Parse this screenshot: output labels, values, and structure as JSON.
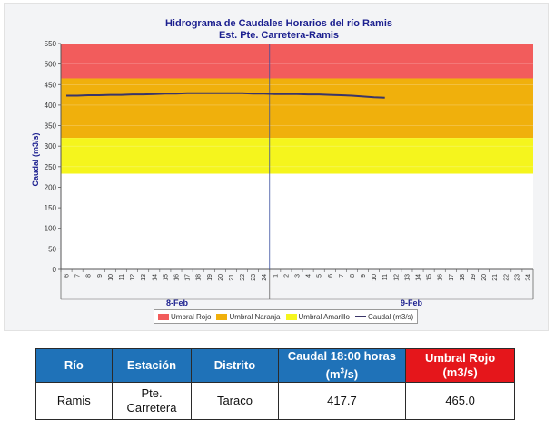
{
  "chart_data": {
    "type": "area",
    "title": "Hidrograma de Caudales Horarios del río Ramis",
    "subtitle": "Est. Pte. Carretera-Ramis",
    "ylabel": "Caudal  (m3/s)",
    "ylim": [
      0,
      550
    ],
    "yticks": [
      0,
      50,
      100,
      150,
      200,
      250,
      300,
      350,
      400,
      450,
      500,
      550
    ],
    "x_tick_labels": [
      "6",
      "7",
      "8",
      "9",
      "10",
      "11",
      "12",
      "13",
      "14",
      "15",
      "16",
      "17",
      "18",
      "19",
      "20",
      "21",
      "22",
      "23",
      "24",
      "1",
      "2",
      "3",
      "4",
      "5",
      "6",
      "7",
      "8",
      "9",
      "10",
      "11",
      "12",
      "13",
      "14",
      "15",
      "16",
      "17",
      "18",
      "19",
      "20",
      "21",
      "22",
      "23",
      "24"
    ],
    "day_labels": [
      "8-Feb",
      "9-Feb"
    ],
    "thresholds": [
      {
        "name": "Umbral Rojo",
        "from": 465,
        "to": 550,
        "color": "#f25c5c"
      },
      {
        "name": "Umbral Naranja",
        "from": 320,
        "to": 465,
        "color": "#f0b00c"
      },
      {
        "name": "Umbral Amarillo",
        "from": 233,
        "to": 320,
        "color": "#f5f51d"
      }
    ],
    "series": [
      {
        "name": "Caudal (m3/s)",
        "color": "#3a3568",
        "values": [
          423,
          423,
          424,
          424,
          425,
          425,
          426,
          426,
          427,
          428,
          428,
          429,
          429,
          429,
          429,
          429,
          429,
          428,
          428,
          427,
          427,
          427,
          426,
          426,
          425,
          424,
          423,
          421,
          419,
          418
        ]
      }
    ],
    "legend_position": "bottom"
  },
  "table": {
    "headers": {
      "rio": "Río",
      "estacion": "Estación",
      "distrito": "Distrito",
      "caudal_line1": "Caudal 18:00 horas",
      "caudal_unit": "(m",
      "caudal_unit_sup": "3",
      "caudal_unit_end": "/s)",
      "umbral_line1": "Umbral Rojo",
      "umbral_line2": "(m3/s)"
    },
    "row": {
      "rio": "Ramis",
      "estacion_line1": "Pte.",
      "estacion_line2": "Carretera",
      "distrito": "Taraco",
      "caudal": "417.7",
      "umbral": "465.0"
    }
  }
}
